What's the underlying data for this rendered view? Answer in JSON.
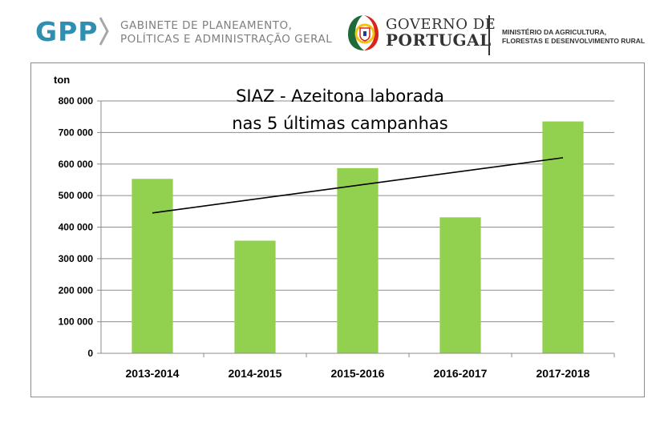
{
  "header": {
    "gpp_logo": "GPP",
    "gpp_line1": "GABINETE DE PLANEAMENTO,",
    "gpp_line2": "POLÍTICAS E ADMINISTRAÇÃO GERAL",
    "gov_line1": "GOVERNO DE",
    "gov_line2": "PORTUGAL",
    "ministry_line1": "MINISTÉRIO DA AGRICULTURA,",
    "ministry_line2": "FLORESTAS E DESENVOLVIMENTO RURAL"
  },
  "colors": {
    "bar": "#92d050",
    "gpp_blue": "#2f8fb0",
    "gov_green": "#1e6b3a",
    "gov_red": "#d9261c",
    "gov_yellow": "#f2c40f"
  },
  "chart_data": {
    "type": "bar",
    "title_line1": "SIAZ - Azeitona laborada",
    "title_line2": "nas 5 últimas campanhas",
    "ylabel": "ton",
    "xlabel": "",
    "categories": [
      "2013-2014",
      "2014-2015",
      "2015-2016",
      "2016-2017",
      "2017-2018"
    ],
    "values": [
      553000,
      357000,
      587000,
      431000,
      735000
    ],
    "ylim": [
      0,
      800000
    ],
    "yticks": [
      0,
      100000,
      200000,
      300000,
      400000,
      500000,
      600000,
      700000,
      800000
    ],
    "ytick_labels": [
      "0",
      "100 000",
      "200 000",
      "300 000",
      "400 000",
      "500 000",
      "600 000",
      "700 000",
      "800 000"
    ],
    "trendline": {
      "type": "linear",
      "start": 445000,
      "end": 620000
    },
    "grid": true,
    "legend": "none"
  }
}
